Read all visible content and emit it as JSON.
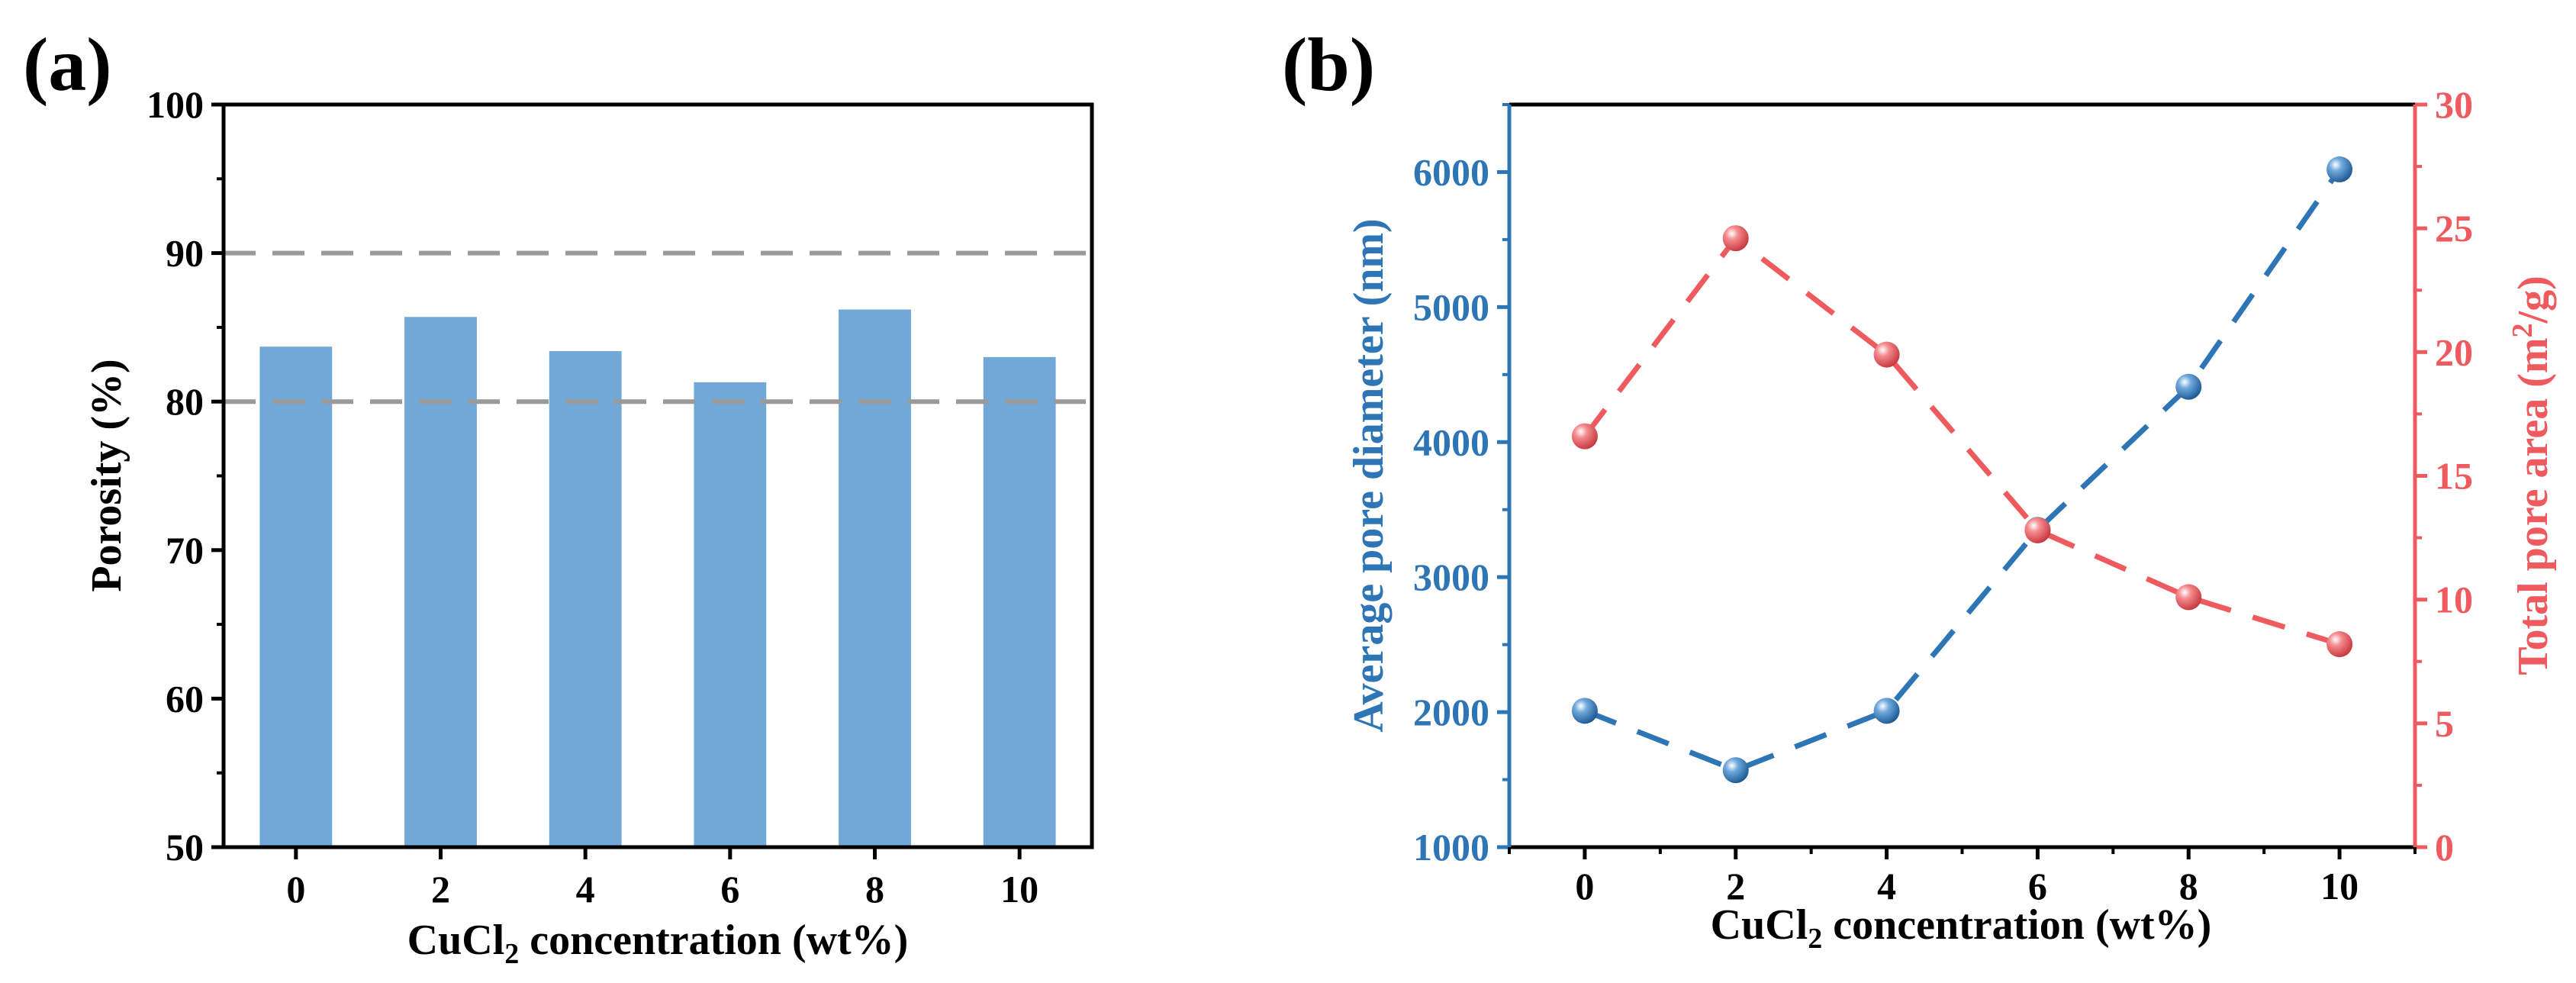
{
  "colors": {
    "bar": "#72a8d6",
    "guide": "#9a9a9a",
    "left_series": "#2e75b6",
    "right_series": "#ef5a5f",
    "axis": "#000000"
  },
  "panel_a": {
    "label": "(a)",
    "xlabel_prefix": "CuCl",
    "xlabel_sub": "2",
    "xlabel_suffix": " concentration (wt%)",
    "ylabel": "Porosity (%)"
  },
  "panel_b": {
    "label": "(b)",
    "xlabel_prefix": "CuCl",
    "xlabel_sub": "2",
    "xlabel_suffix": " concentration (wt%)",
    "ylabel_left": "Average pore diameter (nm)",
    "ylabel_right_prefix": "Total pore area (m",
    "ylabel_right_sup": "2",
    "ylabel_right_suffix": "/g)"
  },
  "chart_data": [
    {
      "type": "bar",
      "categories": [
        "0",
        "2",
        "4",
        "6",
        "8",
        "10"
      ],
      "values": [
        83.7,
        85.7,
        83.4,
        81.3,
        86.2,
        83.0
      ],
      "ylim": [
        50,
        100
      ],
      "yticks": [
        50,
        60,
        70,
        80,
        90,
        100
      ],
      "reference_lines": [
        80,
        90
      ],
      "xlabel": "CuCl2 concentration (wt%)",
      "ylabel": "Porosity (%)",
      "grid": false
    },
    {
      "type": "line",
      "x": [
        0,
        2,
        4,
        6,
        8,
        10
      ],
      "xticks": [
        0,
        2,
        4,
        6,
        8,
        10
      ],
      "xlim": [
        -1,
        11
      ],
      "series": [
        {
          "axis": "left",
          "values": [
            2010,
            1570,
            2010,
            3350,
            4410,
            6020
          ],
          "color": "#2e75b6",
          "line_style": "dashed",
          "marker": "sphere"
        },
        {
          "axis": "right",
          "values": [
            16.6,
            24.6,
            19.9,
            12.8,
            10.1,
            8.2
          ],
          "color": "#ef5a5f",
          "line_style": "dashed",
          "marker": "sphere"
        }
      ],
      "ylim_left": [
        1000,
        6500
      ],
      "yticks_left": [
        1000,
        2000,
        3000,
        4000,
        5000,
        6000
      ],
      "ylim_right": [
        0,
        30
      ],
      "yticks_right": [
        0,
        5,
        10,
        15,
        20,
        25,
        30
      ],
      "xlabel": "CuCl2 concentration (wt%)",
      "ylabel_left": "Average pore diameter (nm)",
      "ylabel_right": "Total pore area (m2/g)",
      "grid": false
    }
  ]
}
